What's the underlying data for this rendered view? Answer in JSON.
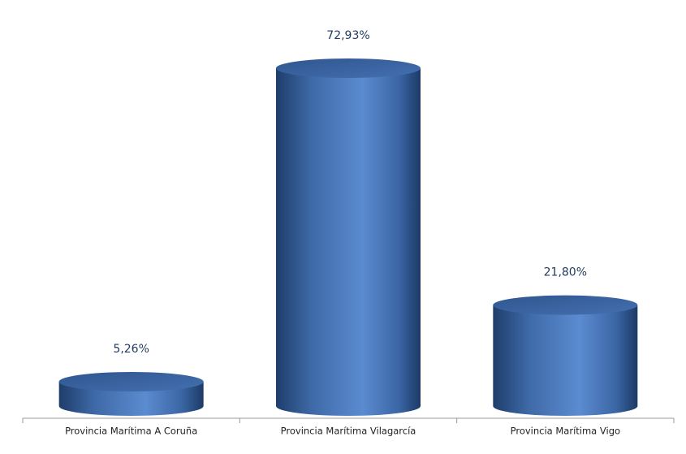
{
  "chart_data": {
    "type": "cylinder-bar",
    "categories": [
      "Provincia Marítima A Coruña",
      "Provincia Marítima Vilagarcía",
      "Provincia Marítima Vigo"
    ],
    "values": [
      5.26,
      72.93,
      21.8
    ],
    "value_labels": [
      "5,26%",
      "72,93%",
      "21,80%"
    ],
    "color": "#4a78b8"
  }
}
